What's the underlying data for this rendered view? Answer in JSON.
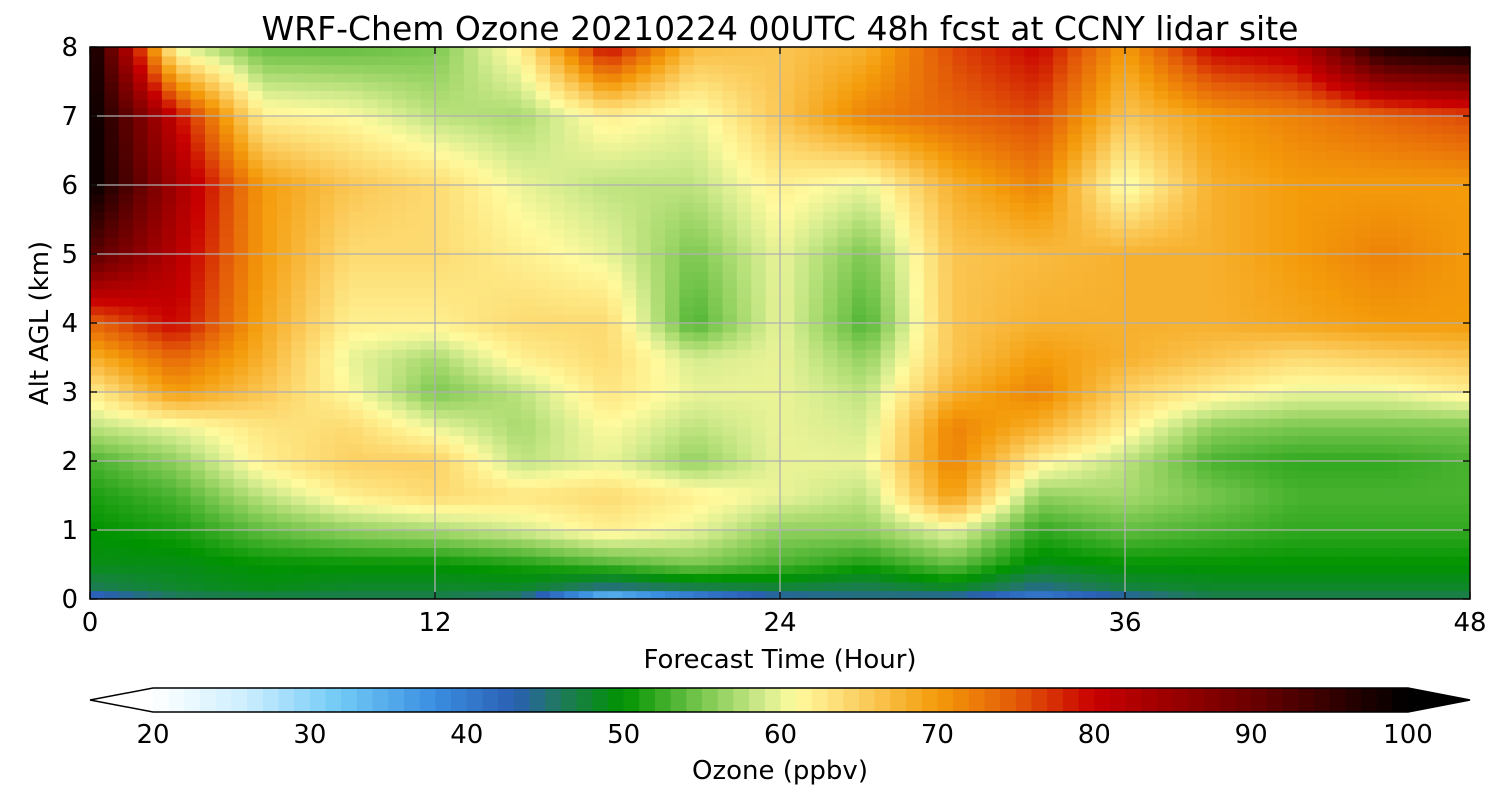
{
  "chart_data": {
    "type": "heatmap",
    "title": "WRF-Chem Ozone  20210224 00UTC 48h fcst at CCNY lidar site",
    "xlabel": "Forecast Time (Hour)",
    "ylabel": "Alt AGL (km)",
    "xlim": [
      0,
      48
    ],
    "ylim": [
      0,
      8
    ],
    "x_ticks": [
      "0",
      "12",
      "24",
      "36",
      "48"
    ],
    "y_ticks": [
      "0",
      "1",
      "2",
      "3",
      "4",
      "5",
      "6",
      "7",
      "8"
    ],
    "grid": true,
    "x_hours": [
      0,
      3,
      6,
      9,
      12,
      15,
      18,
      21,
      24,
      27,
      30,
      33,
      36,
      39,
      42,
      45,
      48
    ],
    "z_km": [
      0,
      0.15,
      0.5,
      1,
      1.5,
      2,
      2.5,
      3,
      3.5,
      4,
      5,
      6,
      7,
      8
    ],
    "ozone_ppbv": [
      [
        40,
        45,
        46,
        46,
        46,
        44,
        28,
        36,
        42,
        44,
        42,
        38,
        42,
        46,
        46,
        46,
        46
      ],
      [
        46,
        48,
        49,
        48,
        48,
        48,
        44,
        46,
        47,
        46,
        48,
        44,
        47,
        48,
        48,
        48,
        48
      ],
      [
        49,
        49,
        50,
        50,
        50,
        51,
        53,
        55,
        53,
        51,
        54,
        49,
        50,
        50,
        50,
        50,
        50
      ],
      [
        50,
        51,
        54,
        56,
        57,
        59,
        62,
        60,
        56,
        56,
        60,
        52,
        54,
        53,
        52,
        52,
        52
      ],
      [
        51,
        53,
        58,
        62,
        64,
        63,
        64,
        62,
        60,
        58,
        70,
        56,
        57,
        55,
        53,
        53,
        53
      ],
      [
        53,
        56,
        62,
        65,
        65,
        58,
        60,
        56,
        60,
        60,
        72,
        62,
        58,
        53,
        52,
        52,
        53
      ],
      [
        58,
        60,
        63,
        64,
        60,
        57,
        61,
        58,
        60,
        59,
        72,
        68,
        62,
        56,
        55,
        55,
        55
      ],
      [
        62,
        70,
        66,
        61,
        55,
        58,
        63,
        60,
        60,
        58,
        68,
        72,
        65,
        62,
        60,
        60,
        62
      ],
      [
        68,
        74,
        68,
        60,
        57,
        62,
        64,
        59,
        60,
        56,
        66,
        70,
        68,
        66,
        64,
        65,
        66
      ],
      [
        74,
        80,
        69,
        62,
        62,
        64,
        64,
        53,
        60,
        53,
        66,
        68,
        68,
        68,
        69,
        70,
        70
      ],
      [
        92,
        82,
        70,
        64,
        64,
        62,
        60,
        55,
        60,
        55,
        66,
        67,
        68,
        68,
        70,
        72,
        70
      ],
      [
        100,
        84,
        70,
        66,
        64,
        60,
        58,
        58,
        62,
        60,
        68,
        72,
        60,
        68,
        70,
        70,
        70
      ],
      [
        100,
        80,
        62,
        61,
        58,
        57,
        62,
        60,
        66,
        72,
        74,
        76,
        66,
        70,
        72,
        74,
        76
      ],
      [
        100,
        60,
        54,
        54,
        55,
        62,
        80,
        67,
        66,
        68,
        76,
        80,
        70,
        80,
        82,
        98,
        100
      ]
    ],
    "colorbar": {
      "label": "Ozone  (ppbv)",
      "min": 20,
      "max": 100,
      "ticks": [
        "20",
        "30",
        "40",
        "50",
        "60",
        "70",
        "80",
        "90",
        "100"
      ],
      "extend": "both",
      "stops": [
        [
          20,
          "#ffffff"
        ],
        [
          26,
          "#ccedff"
        ],
        [
          32,
          "#6fc9f5"
        ],
        [
          38,
          "#3a8ee0"
        ],
        [
          43,
          "#2a5fb4"
        ],
        [
          46,
          "#1f7a5a"
        ],
        [
          50,
          "#009300"
        ],
        [
          55,
          "#7ac74f"
        ],
        [
          59,
          "#d4ec8e"
        ],
        [
          61,
          "#fffa9e"
        ],
        [
          65,
          "#fcd063"
        ],
        [
          70,
          "#f49b0a"
        ],
        [
          75,
          "#e35a08"
        ],
        [
          80,
          "#c80000"
        ],
        [
          90,
          "#6b0000"
        ],
        [
          100,
          "#000000"
        ]
      ]
    }
  }
}
